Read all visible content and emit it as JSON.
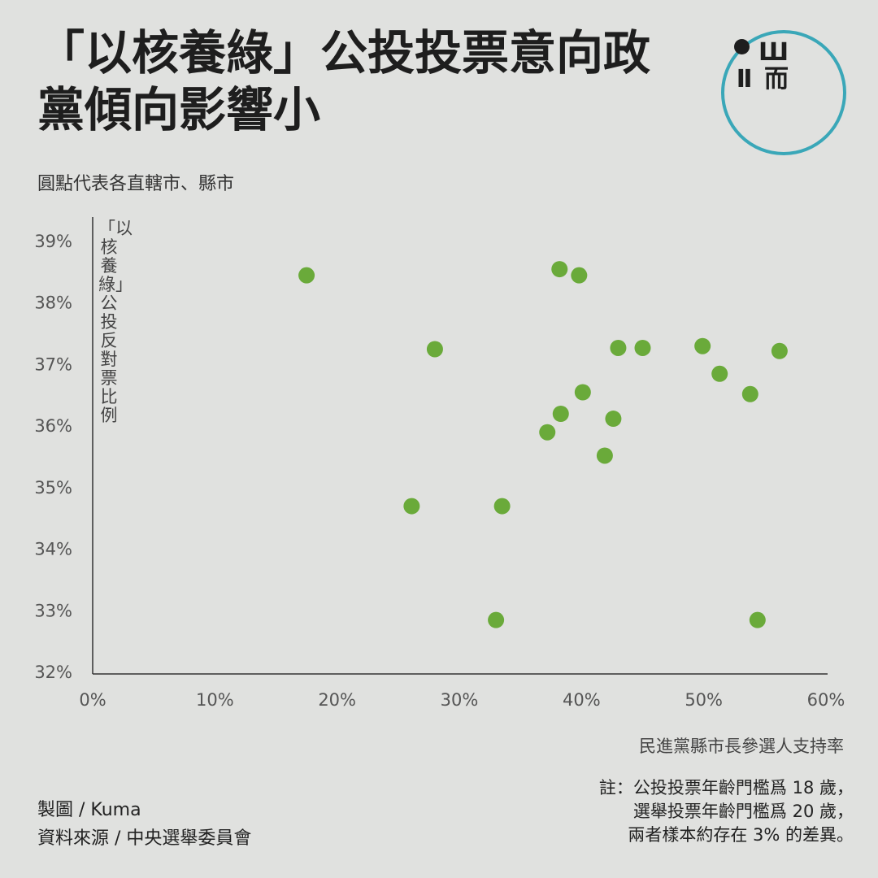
{
  "header": {
    "title": "「以核養綠」公投投票意向政黨傾向影響小",
    "subtitle": "圓點代表各直轄市、縣市"
  },
  "logo": {
    "text": "Ш\nⅡ 而",
    "ring_color": "#3aa7b8"
  },
  "footer": {
    "credit": "製圖 / Kuma",
    "source": "資料來源 / 中央選舉委員會",
    "note": "註：公投投票年齡門檻爲 18 歲，\n選舉投票年齡門檻爲 20 歲，\n兩者樣本約存在 3% 的差異。"
  },
  "chart_data": {
    "type": "scatter",
    "title": "「以核養綠」公投投票意向政黨傾向影響小",
    "subtitle": "圓點代表各直轄市、縣市",
    "xlabel": "民進黨縣市長參選人支持率",
    "ylabel": "「以核養綠」公投反對票比例",
    "xlim": [
      0,
      60
    ],
    "ylim": [
      32,
      39
    ],
    "xticks": [
      "0%",
      "10%",
      "20%",
      "30%",
      "40%",
      "50%",
      "60%"
    ],
    "yticks": [
      "32%",
      "33%",
      "34%",
      "35%",
      "36%",
      "37%",
      "38%",
      "39%"
    ],
    "grid": false,
    "point_color": "#6aaa3a",
    "points": [
      {
        "x": 17.5,
        "y": 38.45
      },
      {
        "x": 38.2,
        "y": 38.55
      },
      {
        "x": 39.8,
        "y": 38.45
      },
      {
        "x": 28.0,
        "y": 37.25
      },
      {
        "x": 43.0,
        "y": 37.27
      },
      {
        "x": 45.0,
        "y": 37.27
      },
      {
        "x": 49.9,
        "y": 37.3
      },
      {
        "x": 56.2,
        "y": 37.22
      },
      {
        "x": 51.3,
        "y": 36.85
      },
      {
        "x": 53.8,
        "y": 36.52
      },
      {
        "x": 40.1,
        "y": 36.55
      },
      {
        "x": 38.3,
        "y": 36.2
      },
      {
        "x": 42.6,
        "y": 36.12
      },
      {
        "x": 37.2,
        "y": 35.9
      },
      {
        "x": 41.9,
        "y": 35.52
      },
      {
        "x": 26.1,
        "y": 34.7
      },
      {
        "x": 33.5,
        "y": 34.7
      },
      {
        "x": 33.0,
        "y": 32.85
      },
      {
        "x": 54.4,
        "y": 32.85
      }
    ]
  }
}
